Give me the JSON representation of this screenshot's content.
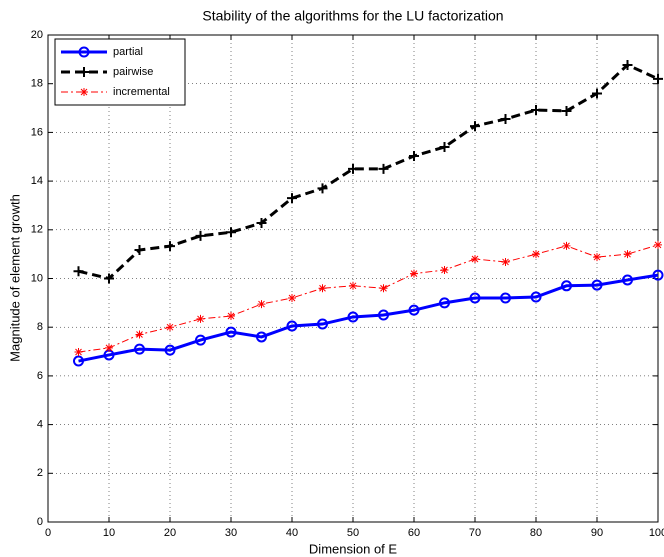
{
  "chart_data": {
    "type": "line",
    "title": "Stability of the algorithms for the LU factorization",
    "xlabel": "Dimension of E",
    "ylabel": "Magnitude of element growth",
    "x": [
      5,
      10,
      15,
      20,
      25,
      30,
      35,
      40,
      45,
      50,
      55,
      60,
      65,
      70,
      75,
      80,
      85,
      90,
      95,
      100
    ],
    "series": [
      {
        "name": "partial",
        "color": "#0000ff",
        "linestyle": "solid",
        "linewidth": 3,
        "marker": "o",
        "values": [
          6.61,
          6.86,
          7.1,
          7.06,
          7.47,
          7.8,
          7.6,
          8.05,
          8.13,
          8.42,
          8.5,
          8.7,
          9.0,
          9.2,
          9.2,
          9.24,
          9.7,
          9.73,
          9.94,
          10.14
        ]
      },
      {
        "name": "pairwise",
        "color": "#000000",
        "linestyle": "dashed",
        "linewidth": 3,
        "marker": "+",
        "values": [
          10.3,
          10.0,
          11.17,
          11.33,
          11.75,
          11.9,
          12.28,
          13.3,
          13.7,
          14.5,
          14.5,
          15.03,
          15.4,
          16.26,
          16.55,
          16.92,
          16.88,
          17.6,
          18.77,
          18.2
        ]
      },
      {
        "name": "incremental",
        "color": "#ff0000",
        "linestyle": "dashdot",
        "linewidth": 1,
        "marker": "*",
        "values": [
          6.98,
          7.15,
          7.7,
          8.0,
          8.34,
          8.46,
          8.95,
          9.2,
          9.6,
          9.7,
          9.6,
          10.2,
          10.35,
          10.8,
          10.68,
          11.0,
          11.34,
          10.88,
          11.0,
          11.38
        ]
      }
    ],
    "xlim": [
      0,
      100
    ],
    "xticks": [
      0,
      10,
      20,
      30,
      40,
      50,
      60,
      70,
      80,
      90,
      100
    ],
    "ylim": [
      0,
      20
    ],
    "yticks": [
      0,
      2,
      4,
      6,
      8,
      10,
      12,
      14,
      16,
      18,
      20
    ],
    "grid": true,
    "legend": "upper-left"
  }
}
